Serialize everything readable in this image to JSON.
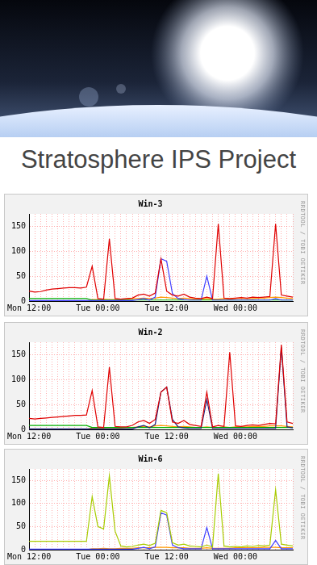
{
  "title": "Stratosphere IPS Project",
  "chart_data": [
    {
      "type": "line",
      "title": "Win-3",
      "annotations": [
        "RRDTOOL / TOBI OETIKER"
      ],
      "categories": [
        "Mon 12:00",
        null,
        null,
        null,
        null,
        null,
        null,
        null,
        null,
        null,
        null,
        null,
        "Tue 00:00",
        null,
        null,
        null,
        null,
        null,
        null,
        null,
        null,
        null,
        null,
        null,
        "Tue 12:00",
        null,
        null,
        null,
        null,
        null,
        null,
        null,
        null,
        null,
        null,
        null,
        "Wed 00:00",
        null,
        null,
        null,
        null,
        null,
        null,
        null,
        null,
        null,
        null
      ],
      "series": [
        {
          "color": "#e00000",
          "values": [
            20,
            18,
            19,
            22,
            24,
            25,
            26,
            27,
            27,
            26,
            28,
            70,
            5,
            4,
            125,
            5,
            4,
            5,
            6,
            12,
            14,
            10,
            16,
            85,
            20,
            12,
            10,
            14,
            8,
            6,
            5,
            8,
            5,
            155,
            6,
            5,
            6,
            7,
            6,
            8,
            7,
            8,
            9,
            155,
            12,
            10,
            8
          ]
        },
        {
          "color": "#4040ff",
          "values": [
            1,
            1,
            1,
            1,
            1,
            1,
            1,
            1,
            1,
            1,
            1,
            1,
            1,
            1,
            1,
            1,
            1,
            1,
            1,
            3,
            5,
            2,
            8,
            85,
            80,
            15,
            5,
            3,
            2,
            2,
            2,
            50,
            2,
            2,
            2,
            2,
            2,
            2,
            2,
            2,
            2,
            2,
            2,
            5,
            2,
            2,
            2
          ]
        },
        {
          "color": "#00b000",
          "values": [
            5,
            5,
            5,
            5,
            5,
            5,
            5,
            5,
            5,
            5,
            5,
            2,
            2,
            2,
            2,
            2,
            2,
            2,
            2,
            2,
            2,
            2,
            2,
            2,
            2,
            2,
            2,
            2,
            2,
            2,
            2,
            2,
            2,
            2,
            2,
            2,
            2,
            2,
            2,
            2,
            2,
            2,
            2,
            2,
            2,
            2,
            2
          ]
        },
        {
          "color": "#ff9900",
          "values": [
            0,
            0,
            0,
            0,
            0,
            0,
            0,
            0,
            0,
            0,
            0,
            3,
            3,
            4,
            3,
            3,
            4,
            4,
            5,
            5,
            6,
            5,
            6,
            8,
            7,
            6,
            5,
            6,
            5,
            4,
            4,
            5,
            4,
            4,
            5,
            4,
            5,
            6,
            5,
            5,
            6,
            6,
            7,
            8,
            7,
            6,
            5
          ]
        }
      ],
      "ylim": [
        0,
        175
      ],
      "yticks": [
        0,
        50,
        100,
        150
      ],
      "grid": true
    },
    {
      "type": "line",
      "title": "Win-2",
      "annotations": [
        "RRDTOOL / TOBI OETIKER"
      ],
      "categories": [
        "Mon 12:00",
        null,
        null,
        null,
        null,
        null,
        null,
        null,
        null,
        null,
        null,
        null,
        "Tue 00:00",
        null,
        null,
        null,
        null,
        null,
        null,
        null,
        null,
        null,
        null,
        null,
        "Tue 12:00",
        null,
        null,
        null,
        null,
        null,
        null,
        null,
        null,
        null,
        null,
        null,
        "Wed 00:00",
        null,
        null,
        null,
        null,
        null,
        null,
        null,
        null,
        null,
        null
      ],
      "series": [
        {
          "color": "#e00000",
          "values": [
            22,
            21,
            22,
            23,
            24,
            25,
            26,
            27,
            28,
            28,
            29,
            78,
            5,
            4,
            125,
            6,
            5,
            5,
            8,
            15,
            18,
            12,
            20,
            75,
            85,
            15,
            12,
            18,
            10,
            8,
            6,
            75,
            5,
            8,
            6,
            155,
            7,
            6,
            8,
            9,
            8,
            10,
            12,
            11,
            170,
            15,
            12
          ]
        },
        {
          "color": "#20207a",
          "values": [
            1,
            1,
            1,
            1,
            1,
            1,
            1,
            1,
            1,
            1,
            1,
            1,
            1,
            1,
            1,
            1,
            1,
            1,
            1,
            5,
            8,
            3,
            10,
            75,
            85,
            20,
            5,
            3,
            2,
            2,
            2,
            60,
            2,
            2,
            2,
            2,
            2,
            2,
            2,
            2,
            2,
            2,
            2,
            2,
            165,
            5,
            3
          ]
        },
        {
          "color": "#00b000",
          "values": [
            8,
            8,
            8,
            8,
            8,
            8,
            8,
            8,
            8,
            8,
            8,
            4,
            4,
            4,
            4,
            4,
            4,
            4,
            4,
            4,
            4,
            4,
            4,
            4,
            4,
            4,
            4,
            4,
            4,
            4,
            4,
            4,
            4,
            4,
            4,
            4,
            4,
            4,
            4,
            4,
            4,
            4,
            4,
            4,
            4,
            4,
            4
          ]
        },
        {
          "color": "#ff9900",
          "values": [
            0,
            0,
            0,
            0,
            0,
            0,
            0,
            0,
            0,
            0,
            0,
            3,
            3,
            3,
            4,
            3,
            3,
            4,
            4,
            5,
            6,
            5,
            7,
            8,
            7,
            6,
            5,
            6,
            5,
            4,
            4,
            5,
            4,
            4,
            5,
            4,
            5,
            5,
            5,
            6,
            6,
            6,
            7,
            7,
            7,
            6,
            5
          ]
        }
      ],
      "ylim": [
        0,
        175
      ],
      "yticks": [
        0,
        50,
        100,
        150
      ],
      "grid": true
    },
    {
      "type": "line",
      "title": "Win-6",
      "annotations": [
        "RRDTOOL / TOBI OETIKER"
      ],
      "categories": [
        "Mon 12:00",
        null,
        null,
        null,
        null,
        null,
        null,
        null,
        null,
        null,
        null,
        null,
        "Tue 00:00",
        null,
        null,
        null,
        null,
        null,
        null,
        null,
        null,
        null,
        null,
        null,
        "Tue 12:00",
        null,
        null,
        null,
        null,
        null,
        null,
        null,
        null,
        null,
        null,
        null,
        "Wed 00:00",
        null,
        null,
        null,
        null,
        null,
        null,
        null,
        null,
        null,
        null
      ],
      "series": [
        {
          "color": "#a8cc00",
          "values": [
            18,
            18,
            18,
            18,
            18,
            18,
            18,
            18,
            18,
            18,
            18,
            115,
            50,
            45,
            160,
            40,
            8,
            6,
            7,
            10,
            12,
            9,
            14,
            85,
            80,
            15,
            10,
            12,
            8,
            7,
            6,
            10,
            6,
            165,
            8,
            6,
            7,
            6,
            8,
            7,
            9,
            8,
            10,
            130,
            12,
            10,
            8
          ]
        },
        {
          "color": "#4040ff",
          "values": [
            1,
            1,
            1,
            1,
            1,
            1,
            1,
            1,
            1,
            1,
            1,
            1,
            1,
            1,
            1,
            1,
            1,
            1,
            1,
            3,
            5,
            2,
            6,
            80,
            75,
            10,
            4,
            2,
            2,
            2,
            2,
            48,
            2,
            2,
            2,
            2,
            2,
            2,
            2,
            2,
            2,
            2,
            2,
            20,
            2,
            2,
            2
          ]
        },
        {
          "color": "#ff9900",
          "values": [
            0,
            0,
            0,
            0,
            0,
            0,
            0,
            0,
            0,
            0,
            0,
            2,
            2,
            3,
            2,
            2,
            3,
            3,
            3,
            4,
            4,
            4,
            5,
            5,
            5,
            4,
            4,
            4,
            3,
            3,
            3,
            4,
            3,
            3,
            3,
            3,
            4,
            4,
            4,
            4,
            4,
            5,
            5,
            5,
            4,
            4,
            4
          ]
        }
      ],
      "ylim": [
        0,
        175
      ],
      "yticks": [
        0,
        50,
        100,
        150
      ],
      "grid": true
    }
  ]
}
